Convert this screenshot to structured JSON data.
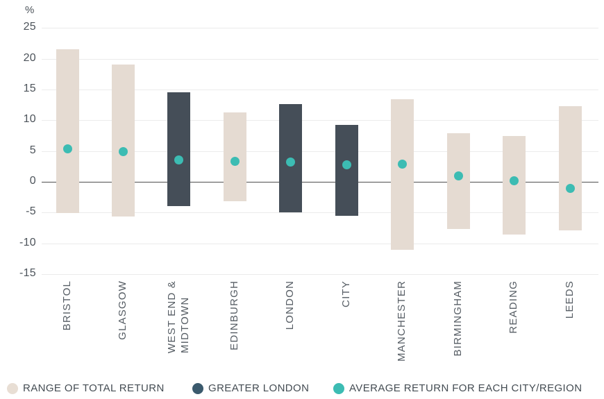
{
  "chart_data": {
    "type": "bar",
    "subtype": "floating-range-bars-with-average-dots",
    "title": "",
    "ylabel": "%",
    "ylim": [
      -15,
      25
    ],
    "yticks": [
      25,
      20,
      15,
      10,
      5,
      0,
      -5,
      -10,
      -15
    ],
    "grid": true,
    "categories": [
      "BRISTOL",
      "GLASGOW",
      "WEST END & MIDTOWN",
      "EDINBURGH",
      "LONDON",
      "CITY",
      "MANCHESTER",
      "BIRMINGHAM",
      "READING",
      "LEEDS"
    ],
    "bars": [
      {
        "city": "BRISTOL",
        "label_lines": [
          "BRISTOL"
        ],
        "min": -5.1,
        "max": 21.5,
        "avg": 5.3,
        "greater_london": false
      },
      {
        "city": "GLASGOW",
        "label_lines": [
          "GLASGOW"
        ],
        "min": -5.6,
        "max": 19.1,
        "avg": 4.9,
        "greater_london": false
      },
      {
        "city": "WEST END & MIDTOWN",
        "label_lines": [
          "WEST END &",
          "MIDTOWN"
        ],
        "min": -4.0,
        "max": 14.5,
        "avg": 3.6,
        "greater_london": true
      },
      {
        "city": "EDINBURGH",
        "label_lines": [
          "EDINBURGH"
        ],
        "min": -3.2,
        "max": 11.3,
        "avg": 3.3,
        "greater_london": false
      },
      {
        "city": "LONDON",
        "label_lines": [
          "LONDON"
        ],
        "min": -5.0,
        "max": 12.6,
        "avg": 3.2,
        "greater_london": true
      },
      {
        "city": "CITY",
        "label_lines": [
          "CITY"
        ],
        "min": -5.5,
        "max": 9.2,
        "avg": 2.8,
        "greater_london": true
      },
      {
        "city": "MANCHESTER",
        "label_lines": [
          "MANCHESTER"
        ],
        "min": -11.1,
        "max": 13.4,
        "avg": 2.9,
        "greater_london": false
      },
      {
        "city": "BIRMINGHAM",
        "label_lines": [
          "BIRMINGHAM"
        ],
        "min": -7.7,
        "max": 7.9,
        "avg": 1.0,
        "greater_london": false
      },
      {
        "city": "READING",
        "label_lines": [
          "READING"
        ],
        "min": -8.6,
        "max": 7.4,
        "avg": 0.2,
        "greater_london": false
      },
      {
        "city": "LEEDS",
        "label_lines": [
          "LEEDS"
        ],
        "min": -7.9,
        "max": 12.3,
        "avg": -1.1,
        "greater_london": false
      }
    ],
    "colors": {
      "range_bar": "#e5dbd2",
      "greater_london_bar": "#454e58",
      "average_dot": "#3cbcb3",
      "gridline": "#ebebeb",
      "zero_line": "#4d4d4d"
    }
  },
  "legend": {
    "items": [
      {
        "label": "RANGE OF TOTAL RETURN",
        "color": "#e8ded4"
      },
      {
        "label": "GREATER LONDON",
        "color": "#3b5a6d"
      },
      {
        "label": "AVERAGE RETURN FOR EACH CITY/REGION",
        "color": "#3cbcb3"
      }
    ]
  }
}
